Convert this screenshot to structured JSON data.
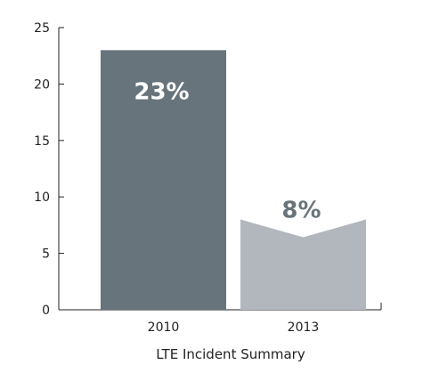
{
  "chart_data": {
    "type": "bar",
    "title": "",
    "xlabel": "LTE Incident Summary",
    "ylabel": "",
    "ylim": [
      0,
      25
    ],
    "yticks": [
      0,
      5,
      10,
      15,
      20,
      25
    ],
    "categories": [
      "2010",
      "2013"
    ],
    "values": [
      23,
      8
    ],
    "data_labels": [
      "23%",
      "8%"
    ],
    "colors": [
      "#68747b",
      "#b1b7bd"
    ],
    "label_colors": [
      "#ffffff",
      "#68747b"
    ],
    "grid": false,
    "legend": "none"
  }
}
